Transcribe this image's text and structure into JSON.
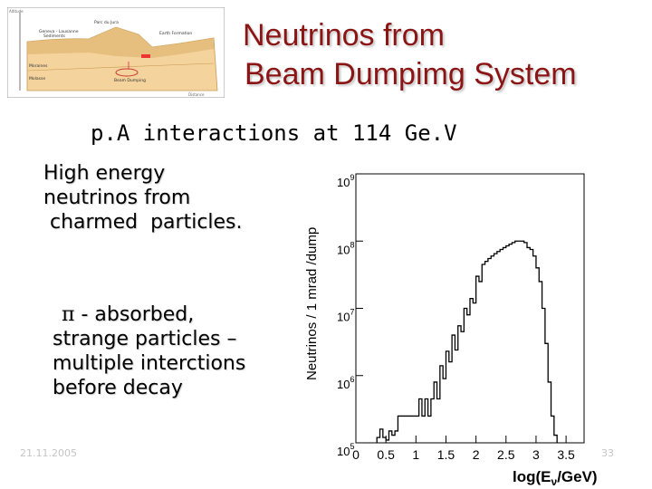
{
  "slide": {
    "title_line1": "Neutrinos from",
    "title_line2": "Beam Dumpimg System",
    "subtitle": "p.A interactions at 114 Ge.V",
    "block1": [
      "High energy",
      "neutrinos from",
      " charmed  particles."
    ],
    "block2_pi": "π",
    "block2_line1": " - absorbed,",
    "block2_rest": [
      "strange particles –",
      "multiple interctions",
      "before decay"
    ],
    "footer_date": "21.11.2005",
    "footer_page": "33"
  },
  "colors": {
    "title": "#8b1414",
    "histogram": "#000000",
    "geo_ground": "#f4d49c",
    "geo_ground_dark": "#e2b877"
  },
  "thumbnail": {
    "labels": [
      "Moraines",
      "Molasse",
      "Beam Dumping",
      "Geneva - Lausanne",
      "Sediments",
      "Parc du Jura",
      "Earth Formation",
      "Altitude",
      "Distance"
    ]
  },
  "chart_data": {
    "type": "histogram",
    "ylabel": "Neutrinos / 1 mrad /dump",
    "xlabel_pre": "log(E",
    "xlabel_sub": "ν",
    "xlabel_post": "/GeV)",
    "yscale": "log",
    "ylim": [
      100000,
      1000000000
    ],
    "xlim": [
      0,
      3.8
    ],
    "x_ticks": [
      0,
      0.5,
      1,
      1.5,
      2,
      2.5,
      3,
      3.5
    ],
    "y_ticks": [
      {
        "base": "10",
        "exp": "5",
        "value": 100000
      },
      {
        "base": "10",
        "exp": "6",
        "value": 1000000
      },
      {
        "base": "10",
        "exp": "7",
        "value": 10000000
      },
      {
        "base": "10",
        "exp": "8",
        "value": 100000000
      },
      {
        "base": "10",
        "exp": "9",
        "value": 1000000000
      }
    ],
    "bin_width": 0.05,
    "values": [
      [
        0.35,
        120000
      ],
      [
        0.4,
        160000
      ],
      [
        0.45,
        120000
      ],
      [
        0.5,
        110000
      ],
      [
        0.55,
        150000
      ],
      [
        0.6,
        130000
      ],
      [
        0.65,
        150000
      ],
      [
        0.7,
        250000
      ],
      [
        0.75,
        250000
      ],
      [
        0.8,
        250000
      ],
      [
        0.85,
        250000
      ],
      [
        0.9,
        250000
      ],
      [
        0.95,
        250000
      ],
      [
        1.0,
        250000
      ],
      [
        1.05,
        450000
      ],
      [
        1.1,
        250000
      ],
      [
        1.15,
        450000
      ],
      [
        1.2,
        250000
      ],
      [
        1.25,
        450000
      ],
      [
        1.3,
        800000
      ],
      [
        1.35,
        450000
      ],
      [
        1.4,
        1400000
      ],
      [
        1.45,
        900000
      ],
      [
        1.5,
        2300000
      ],
      [
        1.55,
        1600000
      ],
      [
        1.6,
        4000000
      ],
      [
        1.65,
        2400000
      ],
      [
        1.7,
        5500000
      ],
      [
        1.75,
        4500000
      ],
      [
        1.8,
        10000000
      ],
      [
        1.85,
        8000000
      ],
      [
        1.9,
        14000000
      ],
      [
        1.95,
        12000000
      ],
      [
        2.0,
        30000000
      ],
      [
        2.05,
        25000000
      ],
      [
        2.1,
        45000000
      ],
      [
        2.15,
        50000000
      ],
      [
        2.2,
        55000000
      ],
      [
        2.25,
        60000000
      ],
      [
        2.3,
        65000000
      ],
      [
        2.35,
        70000000
      ],
      [
        2.4,
        75000000
      ],
      [
        2.45,
        80000000
      ],
      [
        2.5,
        85000000
      ],
      [
        2.55,
        90000000
      ],
      [
        2.6,
        95000000
      ],
      [
        2.65,
        100000000
      ],
      [
        2.7,
        100000000
      ],
      [
        2.75,
        100000000
      ],
      [
        2.8,
        95000000
      ],
      [
        2.85,
        80000000
      ],
      [
        2.9,
        75000000
      ],
      [
        2.95,
        60000000
      ],
      [
        3.0,
        40000000
      ],
      [
        3.05,
        25000000
      ],
      [
        3.1,
        10000000
      ],
      [
        3.15,
        3000000
      ],
      [
        3.2,
        800000
      ],
      [
        3.25,
        250000
      ],
      [
        3.3,
        130000
      ]
    ]
  }
}
